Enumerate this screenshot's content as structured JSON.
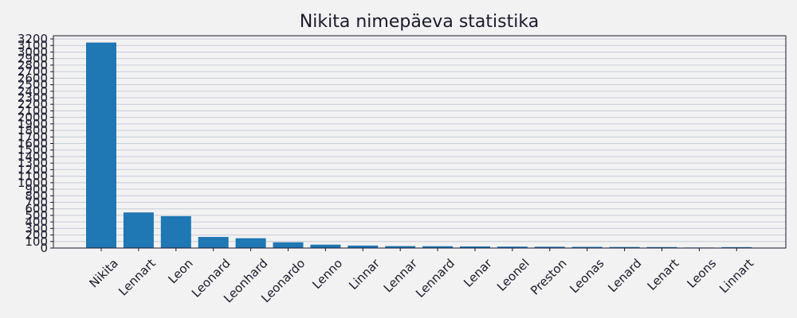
{
  "chart_data": {
    "type": "bar",
    "title": "Nikita nimepäeva statistika",
    "xlabel": "",
    "ylabel": "",
    "categories": [
      "Nikita",
      "Lennart",
      "Leon",
      "Leonard",
      "Leonhard",
      "Leonardo",
      "Lenno",
      "Linnar",
      "Lennar",
      "Lennard",
      "Lenar",
      "Leonel",
      "Preston",
      "Leonas",
      "Lenard",
      "Lenart",
      "Leons",
      "Linnart"
    ],
    "values": [
      3145,
      545,
      488,
      170,
      150,
      88,
      52,
      38,
      30,
      28,
      25,
      22,
      20,
      18,
      16,
      15,
      8,
      14
    ],
    "ylim": [
      0,
      3200
    ],
    "yticks": [
      0,
      100,
      200,
      300,
      400,
      500,
      600,
      700,
      800,
      900,
      1000,
      1100,
      1200,
      1300,
      1400,
      1500,
      1600,
      1700,
      1800,
      1900,
      2000,
      2100,
      2200,
      2300,
      2400,
      2500,
      2600,
      2700,
      2800,
      2900,
      3000,
      3100,
      3200
    ],
    "grid": true,
    "bar_color": "#1f77b4",
    "background": "#f2f2f2",
    "text_color": "#1a1a2e"
  }
}
